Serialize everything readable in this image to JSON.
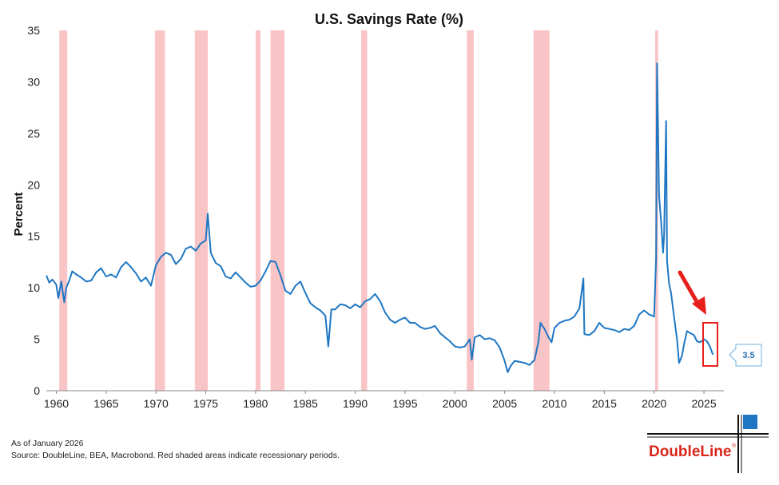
{
  "chart_data": {
    "type": "line",
    "title": "U.S. Savings Rate (%)",
    "ylabel": "Percent",
    "xlabel": "",
    "xlim": [
      1959,
      2027
    ],
    "ylim": [
      0,
      35
    ],
    "x_ticks": [
      "1960",
      "1965",
      "1970",
      "1975",
      "1980",
      "1985",
      "1990",
      "1995",
      "2000",
      "2005",
      "2010",
      "2015",
      "2020",
      "2025"
    ],
    "y_ticks": [
      "0",
      "5",
      "10",
      "15",
      "20",
      "25",
      "30",
      "35"
    ],
    "grid": false,
    "series": [
      {
        "color": "#1f77c4",
        "x": [
          1959.0,
          1959.3,
          1959.6,
          1960.0,
          1960.2,
          1960.5,
          1960.8,
          1961.0,
          1961.3,
          1961.6,
          1962.0,
          1962.5,
          1963.0,
          1963.5,
          1964.0,
          1964.5,
          1965.0,
          1965.5,
          1966.0,
          1966.5,
          1967.0,
          1967.5,
          1968.0,
          1968.5,
          1969.0,
          1969.5,
          1970.0,
          1970.5,
          1971.0,
          1971.5,
          1972.0,
          1972.5,
          1973.0,
          1973.5,
          1974.0,
          1974.5,
          1975.0,
          1975.2,
          1975.5,
          1976.0,
          1976.5,
          1977.0,
          1977.5,
          1978.0,
          1978.5,
          1979.0,
          1979.5,
          1980.0,
          1980.5,
          1981.0,
          1981.5,
          1982.0,
          1982.5,
          1983.0,
          1983.5,
          1984.0,
          1984.5,
          1985.0,
          1985.5,
          1986.0,
          1986.5,
          1987.0,
          1987.3,
          1987.6,
          1988.0,
          1988.5,
          1989.0,
          1989.5,
          1990.0,
          1990.5,
          1991.0,
          1991.5,
          1992.0,
          1992.5,
          1993.0,
          1993.5,
          1994.0,
          1994.5,
          1995.0,
          1995.5,
          1996.0,
          1996.5,
          1997.0,
          1997.5,
          1998.0,
          1998.5,
          1999.0,
          1999.5,
          2000.0,
          2000.5,
          2001.0,
          2001.5,
          2001.7,
          2002.0,
          2002.5,
          2003.0,
          2003.5,
          2004.0,
          2004.5,
          2005.0,
          2005.3,
          2005.6,
          2006.0,
          2006.5,
          2007.0,
          2007.5,
          2008.0,
          2008.4,
          2008.6,
          2009.0,
          2009.4,
          2009.7,
          2010.0,
          2010.5,
          2011.0,
          2011.5,
          2012.0,
          2012.5,
          2012.9,
          2013.0,
          2013.5,
          2014.0,
          2014.5,
          2015.0,
          2015.5,
          2016.0,
          2016.5,
          2017.0,
          2017.5,
          2018.0,
          2018.5,
          2019.0,
          2019.5,
          2020.0,
          2020.2,
          2020.3,
          2020.5,
          2020.7,
          2020.9,
          2021.0,
          2021.2,
          2021.3,
          2021.5,
          2021.7,
          2022.0,
          2022.3,
          2022.5,
          2022.8,
          2023.0,
          2023.3,
          2023.6,
          2024.0,
          2024.3,
          2024.6,
          2025.0,
          2025.3,
          2025.6,
          2025.9
        ],
        "values": [
          11.2,
          10.5,
          10.8,
          10.3,
          9.0,
          10.6,
          8.6,
          10.0,
          10.7,
          11.6,
          11.3,
          11.0,
          10.6,
          10.7,
          11.5,
          11.9,
          11.1,
          11.3,
          11.0,
          12.0,
          12.5,
          12.0,
          11.4,
          10.6,
          11.0,
          10.2,
          12.2,
          13.0,
          13.4,
          13.2,
          12.3,
          12.8,
          13.8,
          14.0,
          13.6,
          14.3,
          14.6,
          17.2,
          13.4,
          12.4,
          12.1,
          11.1,
          10.9,
          11.5,
          11.0,
          10.5,
          10.1,
          10.2,
          10.7,
          11.6,
          12.6,
          12.5,
          11.2,
          9.7,
          9.4,
          10.2,
          10.6,
          9.5,
          8.5,
          8.1,
          7.8,
          7.3,
          4.3,
          7.9,
          7.9,
          8.4,
          8.3,
          8.0,
          8.4,
          8.1,
          8.7,
          8.9,
          9.4,
          8.7,
          7.6,
          6.9,
          6.6,
          6.9,
          7.1,
          6.6,
          6.6,
          6.2,
          6.0,
          6.1,
          6.3,
          5.6,
          5.2,
          4.8,
          4.3,
          4.2,
          4.3,
          5.0,
          3.0,
          5.2,
          5.4,
          5.0,
          5.1,
          4.9,
          4.2,
          2.9,
          1.8,
          2.4,
          2.9,
          2.8,
          2.7,
          2.5,
          3.0,
          4.8,
          6.6,
          6.0,
          5.2,
          4.7,
          6.1,
          6.6,
          6.8,
          6.9,
          7.2,
          8.0,
          10.9,
          5.5,
          5.4,
          5.8,
          6.6,
          6.1,
          6.0,
          5.9,
          5.7,
          6.0,
          5.9,
          6.3,
          7.4,
          7.8,
          7.4,
          7.2,
          12.9,
          31.8,
          18.9,
          16.5,
          13.4,
          15.1,
          26.2,
          12.6,
          10.4,
          9.5,
          7.2,
          5.0,
          2.7,
          3.4,
          4.5,
          5.8,
          5.6,
          5.4,
          4.8,
          4.7,
          5.0,
          4.8,
          4.3,
          3.5
        ]
      }
    ],
    "recessions": [
      [
        1960.3,
        1961.1
      ],
      [
        1969.9,
        1970.9
      ],
      [
        1973.9,
        1975.2
      ],
      [
        1980.0,
        1980.5
      ],
      [
        1981.5,
        1982.9
      ],
      [
        1990.6,
        1991.2
      ],
      [
        2001.2,
        2001.9
      ],
      [
        2007.9,
        2009.5
      ],
      [
        2020.1,
        2020.4
      ]
    ],
    "last_value_label": "3.5",
    "annotations": [
      "red-arrow-toward-latest",
      "red-box-around-latest"
    ]
  },
  "footer": {
    "date_note": "As of January 2026",
    "source": "Source: DoubleLine, BEA, Macrobond. Red shaded areas indicate recessionary periods."
  },
  "logo": {
    "text": "DoubleLine",
    "mark": "®"
  },
  "colors": {
    "line": "#1f77c4",
    "recession": "#f9c4c6",
    "annotation": "#e8201c",
    "logo_red": "#d9261c",
    "logo_blue": "#1f77c4"
  }
}
